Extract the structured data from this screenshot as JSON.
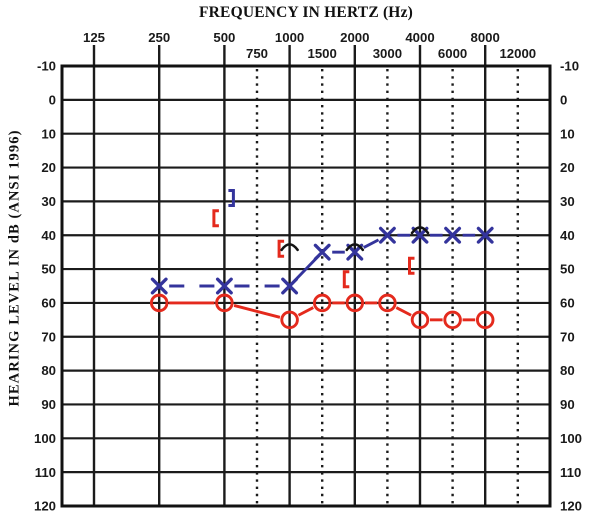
{
  "chart_data": {
    "type": "line",
    "subtype": "audiogram",
    "title": "FREQUENCY IN HERTZ (Hz)",
    "ylabel": "HEARING LEVEL IN dB (ANSI 1996)",
    "x_axis": {
      "unit": "Hz",
      "octave_labels": [
        "125",
        "250",
        "500",
        "1000",
        "2000",
        "4000",
        "8000"
      ],
      "octave_freqs": [
        125,
        250,
        500,
        1000,
        2000,
        4000,
        8000
      ],
      "interoctave_labels": [
        "750",
        "1500",
        "3000",
        "6000",
        "12000"
      ],
      "interoctave_freqs": [
        750,
        1500,
        3000,
        6000,
        12000
      ],
      "freq_positions": {
        "125": 0,
        "250": 1,
        "500": 2,
        "750": 2.5,
        "1000": 3,
        "1500": 3.5,
        "2000": 4,
        "3000": 4.5,
        "4000": 5,
        "6000": 5.5,
        "8000": 6,
        "12000": 6.5
      }
    },
    "y_axis": {
      "unit": "dB",
      "min": -10,
      "max": 120,
      "step": 10,
      "ticks": [
        -10,
        0,
        10,
        20,
        30,
        40,
        50,
        60,
        70,
        80,
        90,
        100,
        110,
        120
      ],
      "labels_on_both_sides": true
    },
    "grid": {
      "horizontal": "solid",
      "vertical_octave": "solid",
      "vertical_interoctave": "dotted"
    },
    "colors": {
      "left_ear": "#34349c",
      "right_ear": "#e42a1d",
      "bone": "#141414",
      "grid": "#1b1b1b"
    },
    "series": [
      {
        "name": "Left ear air conduction",
        "symbol": "x",
        "color_key": "left_ear",
        "line_style": "dashed",
        "points": [
          {
            "f": 250,
            "db": 55
          },
          {
            "f": 500,
            "db": 55
          },
          {
            "f": 1000,
            "db": 55
          },
          {
            "f": 1500,
            "db": 45
          },
          {
            "f": 2000,
            "db": 45
          },
          {
            "f": 3000,
            "db": 40
          },
          {
            "f": 4000,
            "db": 40
          },
          {
            "f": 6000,
            "db": 40
          },
          {
            "f": 8000,
            "db": 40
          }
        ]
      },
      {
        "name": "Right ear air conduction",
        "symbol": "circle",
        "color_key": "right_ear",
        "line_style": "solid_then_dashed",
        "solid_until_f": 1000,
        "points": [
          {
            "f": 250,
            "db": 60
          },
          {
            "f": 500,
            "db": 60
          },
          {
            "f": 1000,
            "db": 65
          },
          {
            "f": 1500,
            "db": 60
          },
          {
            "f": 2000,
            "db": 60
          },
          {
            "f": 3000,
            "db": 60
          },
          {
            "f": 4000,
            "db": 65
          },
          {
            "f": 6000,
            "db": 65
          },
          {
            "f": 8000,
            "db": 65
          }
        ]
      },
      {
        "name": "Right ear masked bone conduction",
        "symbol": "bracket-left",
        "color_key": "right_ear",
        "line_style": "none",
        "points": [
          {
            "f": 500,
            "db": 35
          },
          {
            "f": 1000,
            "db": 44
          },
          {
            "f": 2000,
            "db": 53
          },
          {
            "f": 4000,
            "db": 49
          }
        ]
      },
      {
        "name": "Left ear masked bone conduction",
        "symbol": "bracket-right",
        "color_key": "left_ear",
        "line_style": "none",
        "points": [
          {
            "f": 500,
            "db": 29
          }
        ]
      },
      {
        "name": "Bone conduction carets",
        "symbol": "caret",
        "color_key": "bone",
        "line_style": "none",
        "points": [
          {
            "f": 1000,
            "db": 43
          },
          {
            "f": 2000,
            "db": 43
          },
          {
            "f": 4000,
            "db": 38
          }
        ]
      }
    ]
  }
}
